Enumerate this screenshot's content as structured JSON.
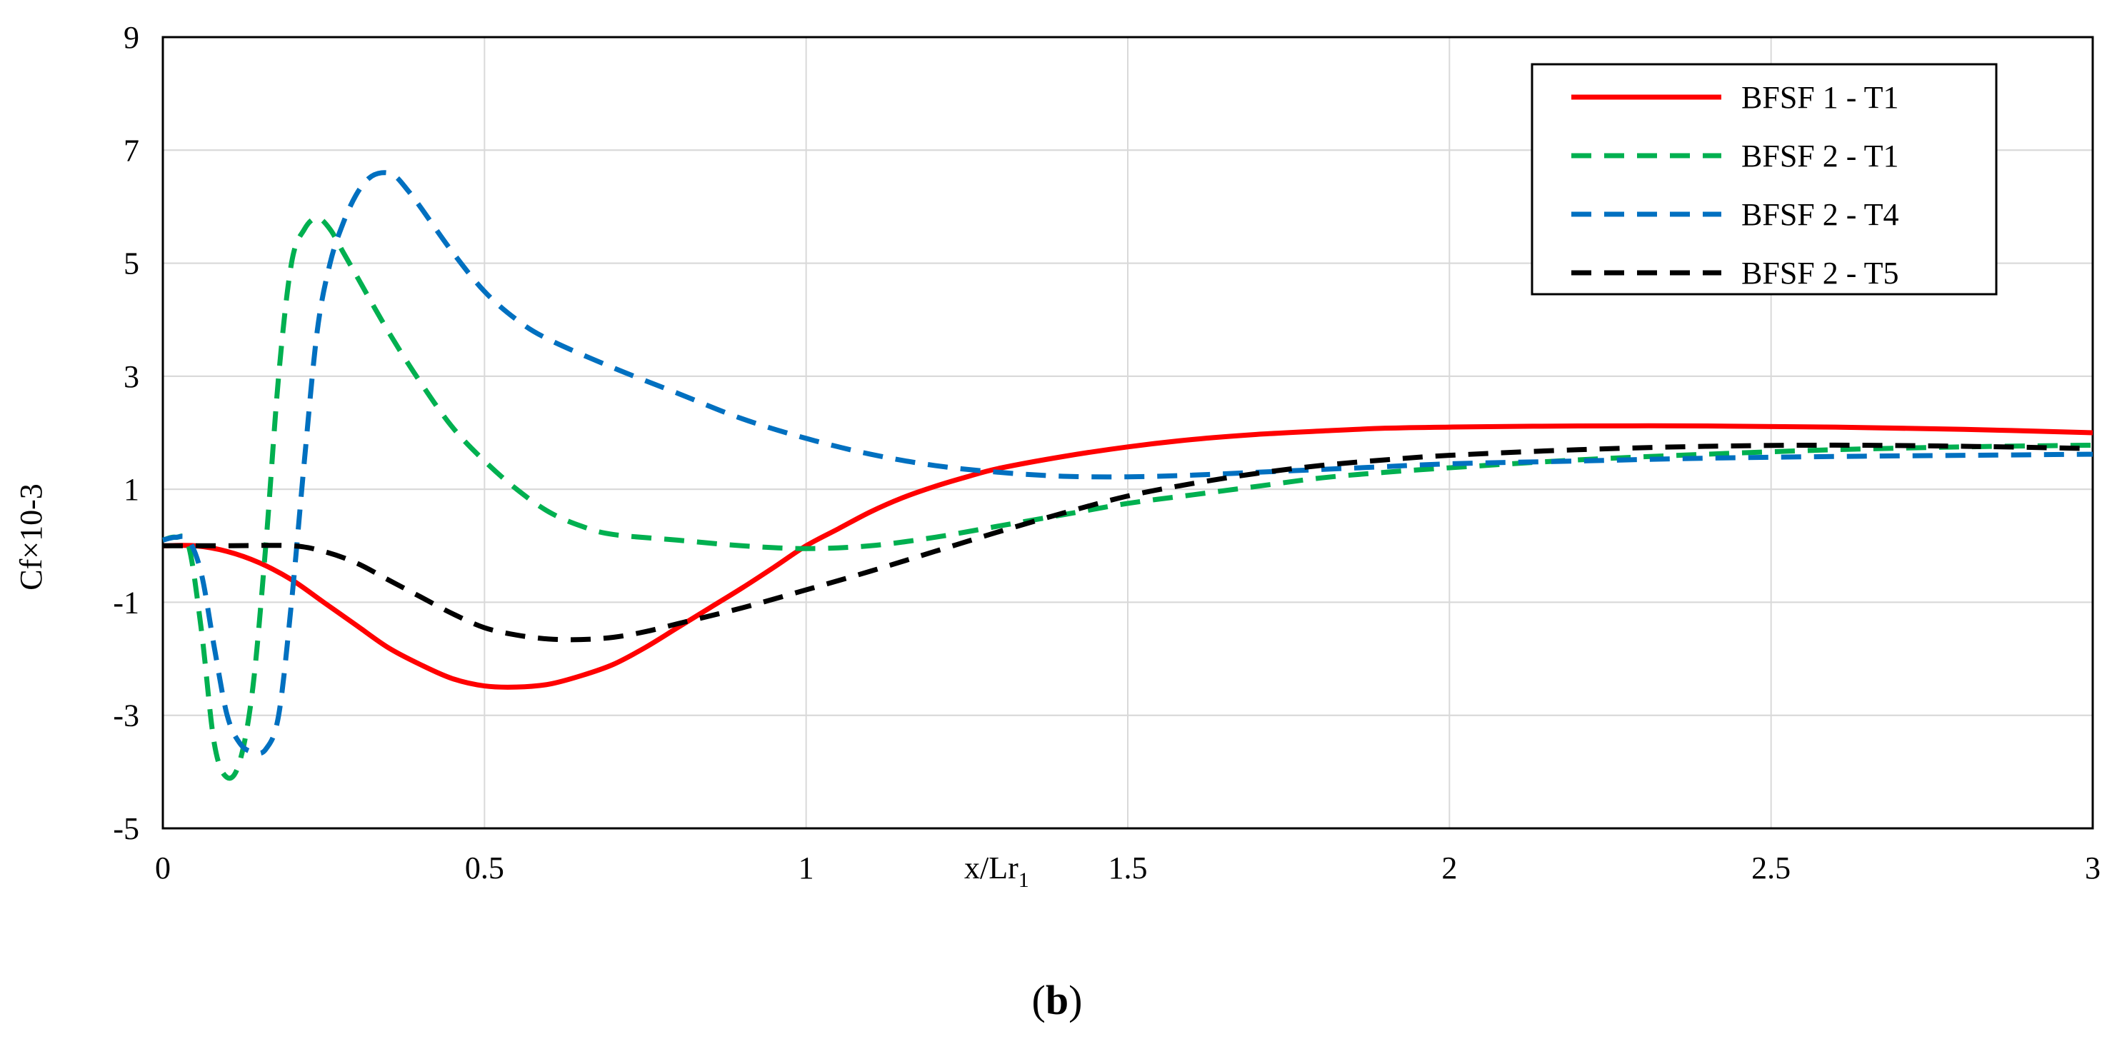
{
  "chart_data": {
    "type": "line",
    "xlabel": "x/Lr",
    "xlabel_subscript": "1",
    "ylabel": "Cf×10-3",
    "xlim": [
      0,
      3
    ],
    "ylim": [
      -5,
      9
    ],
    "x_ticks": [
      "0",
      "0.5",
      "1",
      "1.5",
      "2",
      "2.5",
      "3"
    ],
    "y_ticks": [
      "9",
      "7",
      "5",
      "3",
      "1",
      "-1",
      "-3",
      "-5"
    ],
    "grid": true,
    "legend_position": "top-right",
    "caption_open": "(",
    "caption_bold": "b",
    "caption_close": ")",
    "series": [
      {
        "name": "BFSF 1 - T1",
        "color": "#ff0000",
        "dash": "solid",
        "points": [
          [
            0.0,
            0.0
          ],
          [
            0.05,
            0.0
          ],
          [
            0.1,
            -0.1
          ],
          [
            0.15,
            -0.3
          ],
          [
            0.2,
            -0.6
          ],
          [
            0.25,
            -1.0
          ],
          [
            0.3,
            -1.4
          ],
          [
            0.35,
            -1.8
          ],
          [
            0.4,
            -2.1
          ],
          [
            0.45,
            -2.35
          ],
          [
            0.5,
            -2.48
          ],
          [
            0.55,
            -2.5
          ],
          [
            0.6,
            -2.45
          ],
          [
            0.65,
            -2.3
          ],
          [
            0.7,
            -2.1
          ],
          [
            0.75,
            -1.8
          ],
          [
            0.8,
            -1.45
          ],
          [
            0.85,
            -1.1
          ],
          [
            0.9,
            -0.75
          ],
          [
            0.95,
            -0.38
          ],
          [
            1.0,
            0.0
          ],
          [
            1.05,
            0.3
          ],
          [
            1.1,
            0.6
          ],
          [
            1.15,
            0.85
          ],
          [
            1.2,
            1.05
          ],
          [
            1.25,
            1.22
          ],
          [
            1.3,
            1.37
          ],
          [
            1.4,
            1.58
          ],
          [
            1.5,
            1.75
          ],
          [
            1.6,
            1.88
          ],
          [
            1.7,
            1.97
          ],
          [
            1.8,
            2.03
          ],
          [
            1.9,
            2.08
          ],
          [
            2.0,
            2.1
          ],
          [
            2.2,
            2.12
          ],
          [
            2.4,
            2.12
          ],
          [
            2.6,
            2.1
          ],
          [
            2.8,
            2.06
          ],
          [
            3.0,
            2.0
          ]
        ]
      },
      {
        "name": "BFSF 2 - T1",
        "color": "#00b050",
        "dash": "dashed",
        "points": [
          [
            0.0,
            0.1
          ],
          [
            0.02,
            0.15
          ],
          [
            0.04,
            0.0
          ],
          [
            0.06,
            -1.5
          ],
          [
            0.08,
            -3.5
          ],
          [
            0.1,
            -4.1
          ],
          [
            0.12,
            -3.8
          ],
          [
            0.14,
            -2.5
          ],
          [
            0.16,
            0.0
          ],
          [
            0.18,
            3.0
          ],
          [
            0.2,
            5.0
          ],
          [
            0.22,
            5.6
          ],
          [
            0.24,
            5.8
          ],
          [
            0.26,
            5.6
          ],
          [
            0.28,
            5.2
          ],
          [
            0.3,
            4.8
          ],
          [
            0.35,
            3.8
          ],
          [
            0.4,
            2.9
          ],
          [
            0.45,
            2.1
          ],
          [
            0.5,
            1.5
          ],
          [
            0.55,
            1.0
          ],
          [
            0.6,
            0.6
          ],
          [
            0.65,
            0.35
          ],
          [
            0.7,
            0.2
          ],
          [
            0.8,
            0.1
          ],
          [
            0.9,
            0.0
          ],
          [
            1.0,
            -0.05
          ],
          [
            1.1,
            0.0
          ],
          [
            1.2,
            0.15
          ],
          [
            1.3,
            0.35
          ],
          [
            1.4,
            0.55
          ],
          [
            1.5,
            0.75
          ],
          [
            1.6,
            0.9
          ],
          [
            1.7,
            1.05
          ],
          [
            1.8,
            1.2
          ],
          [
            1.9,
            1.3
          ],
          [
            2.0,
            1.38
          ],
          [
            2.2,
            1.52
          ],
          [
            2.4,
            1.62
          ],
          [
            2.6,
            1.7
          ],
          [
            2.8,
            1.75
          ],
          [
            3.0,
            1.78
          ]
        ]
      },
      {
        "name": "BFSF 2 - T4",
        "color": "#0070c0",
        "dash": "dashed",
        "points": [
          [
            0.0,
            0.1
          ],
          [
            0.02,
            0.15
          ],
          [
            0.04,
            0.1
          ],
          [
            0.06,
            -0.5
          ],
          [
            0.08,
            -1.8
          ],
          [
            0.1,
            -3.0
          ],
          [
            0.12,
            -3.5
          ],
          [
            0.14,
            -3.65
          ],
          [
            0.16,
            -3.6
          ],
          [
            0.18,
            -3.0
          ],
          [
            0.2,
            -1.0
          ],
          [
            0.22,
            1.5
          ],
          [
            0.24,
            3.8
          ],
          [
            0.26,
            5.0
          ],
          [
            0.28,
            5.7
          ],
          [
            0.3,
            6.2
          ],
          [
            0.32,
            6.5
          ],
          [
            0.34,
            6.6
          ],
          [
            0.36,
            6.55
          ],
          [
            0.38,
            6.3
          ],
          [
            0.4,
            6.0
          ],
          [
            0.45,
            5.2
          ],
          [
            0.5,
            4.5
          ],
          [
            0.55,
            4.0
          ],
          [
            0.6,
            3.65
          ],
          [
            0.7,
            3.15
          ],
          [
            0.8,
            2.7
          ],
          [
            0.9,
            2.25
          ],
          [
            1.0,
            1.9
          ],
          [
            1.1,
            1.62
          ],
          [
            1.2,
            1.42
          ],
          [
            1.3,
            1.3
          ],
          [
            1.4,
            1.23
          ],
          [
            1.5,
            1.22
          ],
          [
            1.6,
            1.25
          ],
          [
            1.7,
            1.3
          ],
          [
            1.8,
            1.35
          ],
          [
            1.9,
            1.4
          ],
          [
            2.0,
            1.45
          ],
          [
            2.2,
            1.5
          ],
          [
            2.4,
            1.55
          ],
          [
            2.6,
            1.58
          ],
          [
            2.8,
            1.6
          ],
          [
            3.0,
            1.62
          ]
        ]
      },
      {
        "name": "BFSF 2 - T5",
        "color": "#000000",
        "dash": "dashed",
        "points": [
          [
            0.0,
            0.0
          ],
          [
            0.1,
            0.0
          ],
          [
            0.2,
            0.0
          ],
          [
            0.25,
            -0.1
          ],
          [
            0.3,
            -0.3
          ],
          [
            0.35,
            -0.6
          ],
          [
            0.4,
            -0.9
          ],
          [
            0.45,
            -1.2
          ],
          [
            0.5,
            -1.45
          ],
          [
            0.55,
            -1.58
          ],
          [
            0.6,
            -1.65
          ],
          [
            0.65,
            -1.66
          ],
          [
            0.7,
            -1.62
          ],
          [
            0.75,
            -1.52
          ],
          [
            0.8,
            -1.38
          ],
          [
            0.9,
            -1.1
          ],
          [
            1.0,
            -0.78
          ],
          [
            1.1,
            -0.45
          ],
          [
            1.2,
            -0.1
          ],
          [
            1.3,
            0.25
          ],
          [
            1.4,
            0.58
          ],
          [
            1.5,
            0.88
          ],
          [
            1.6,
            1.1
          ],
          [
            1.7,
            1.28
          ],
          [
            1.8,
            1.42
          ],
          [
            1.9,
            1.52
          ],
          [
            2.0,
            1.6
          ],
          [
            2.2,
            1.7
          ],
          [
            2.4,
            1.76
          ],
          [
            2.6,
            1.78
          ],
          [
            2.8,
            1.76
          ],
          [
            3.0,
            1.72
          ]
        ]
      }
    ]
  }
}
